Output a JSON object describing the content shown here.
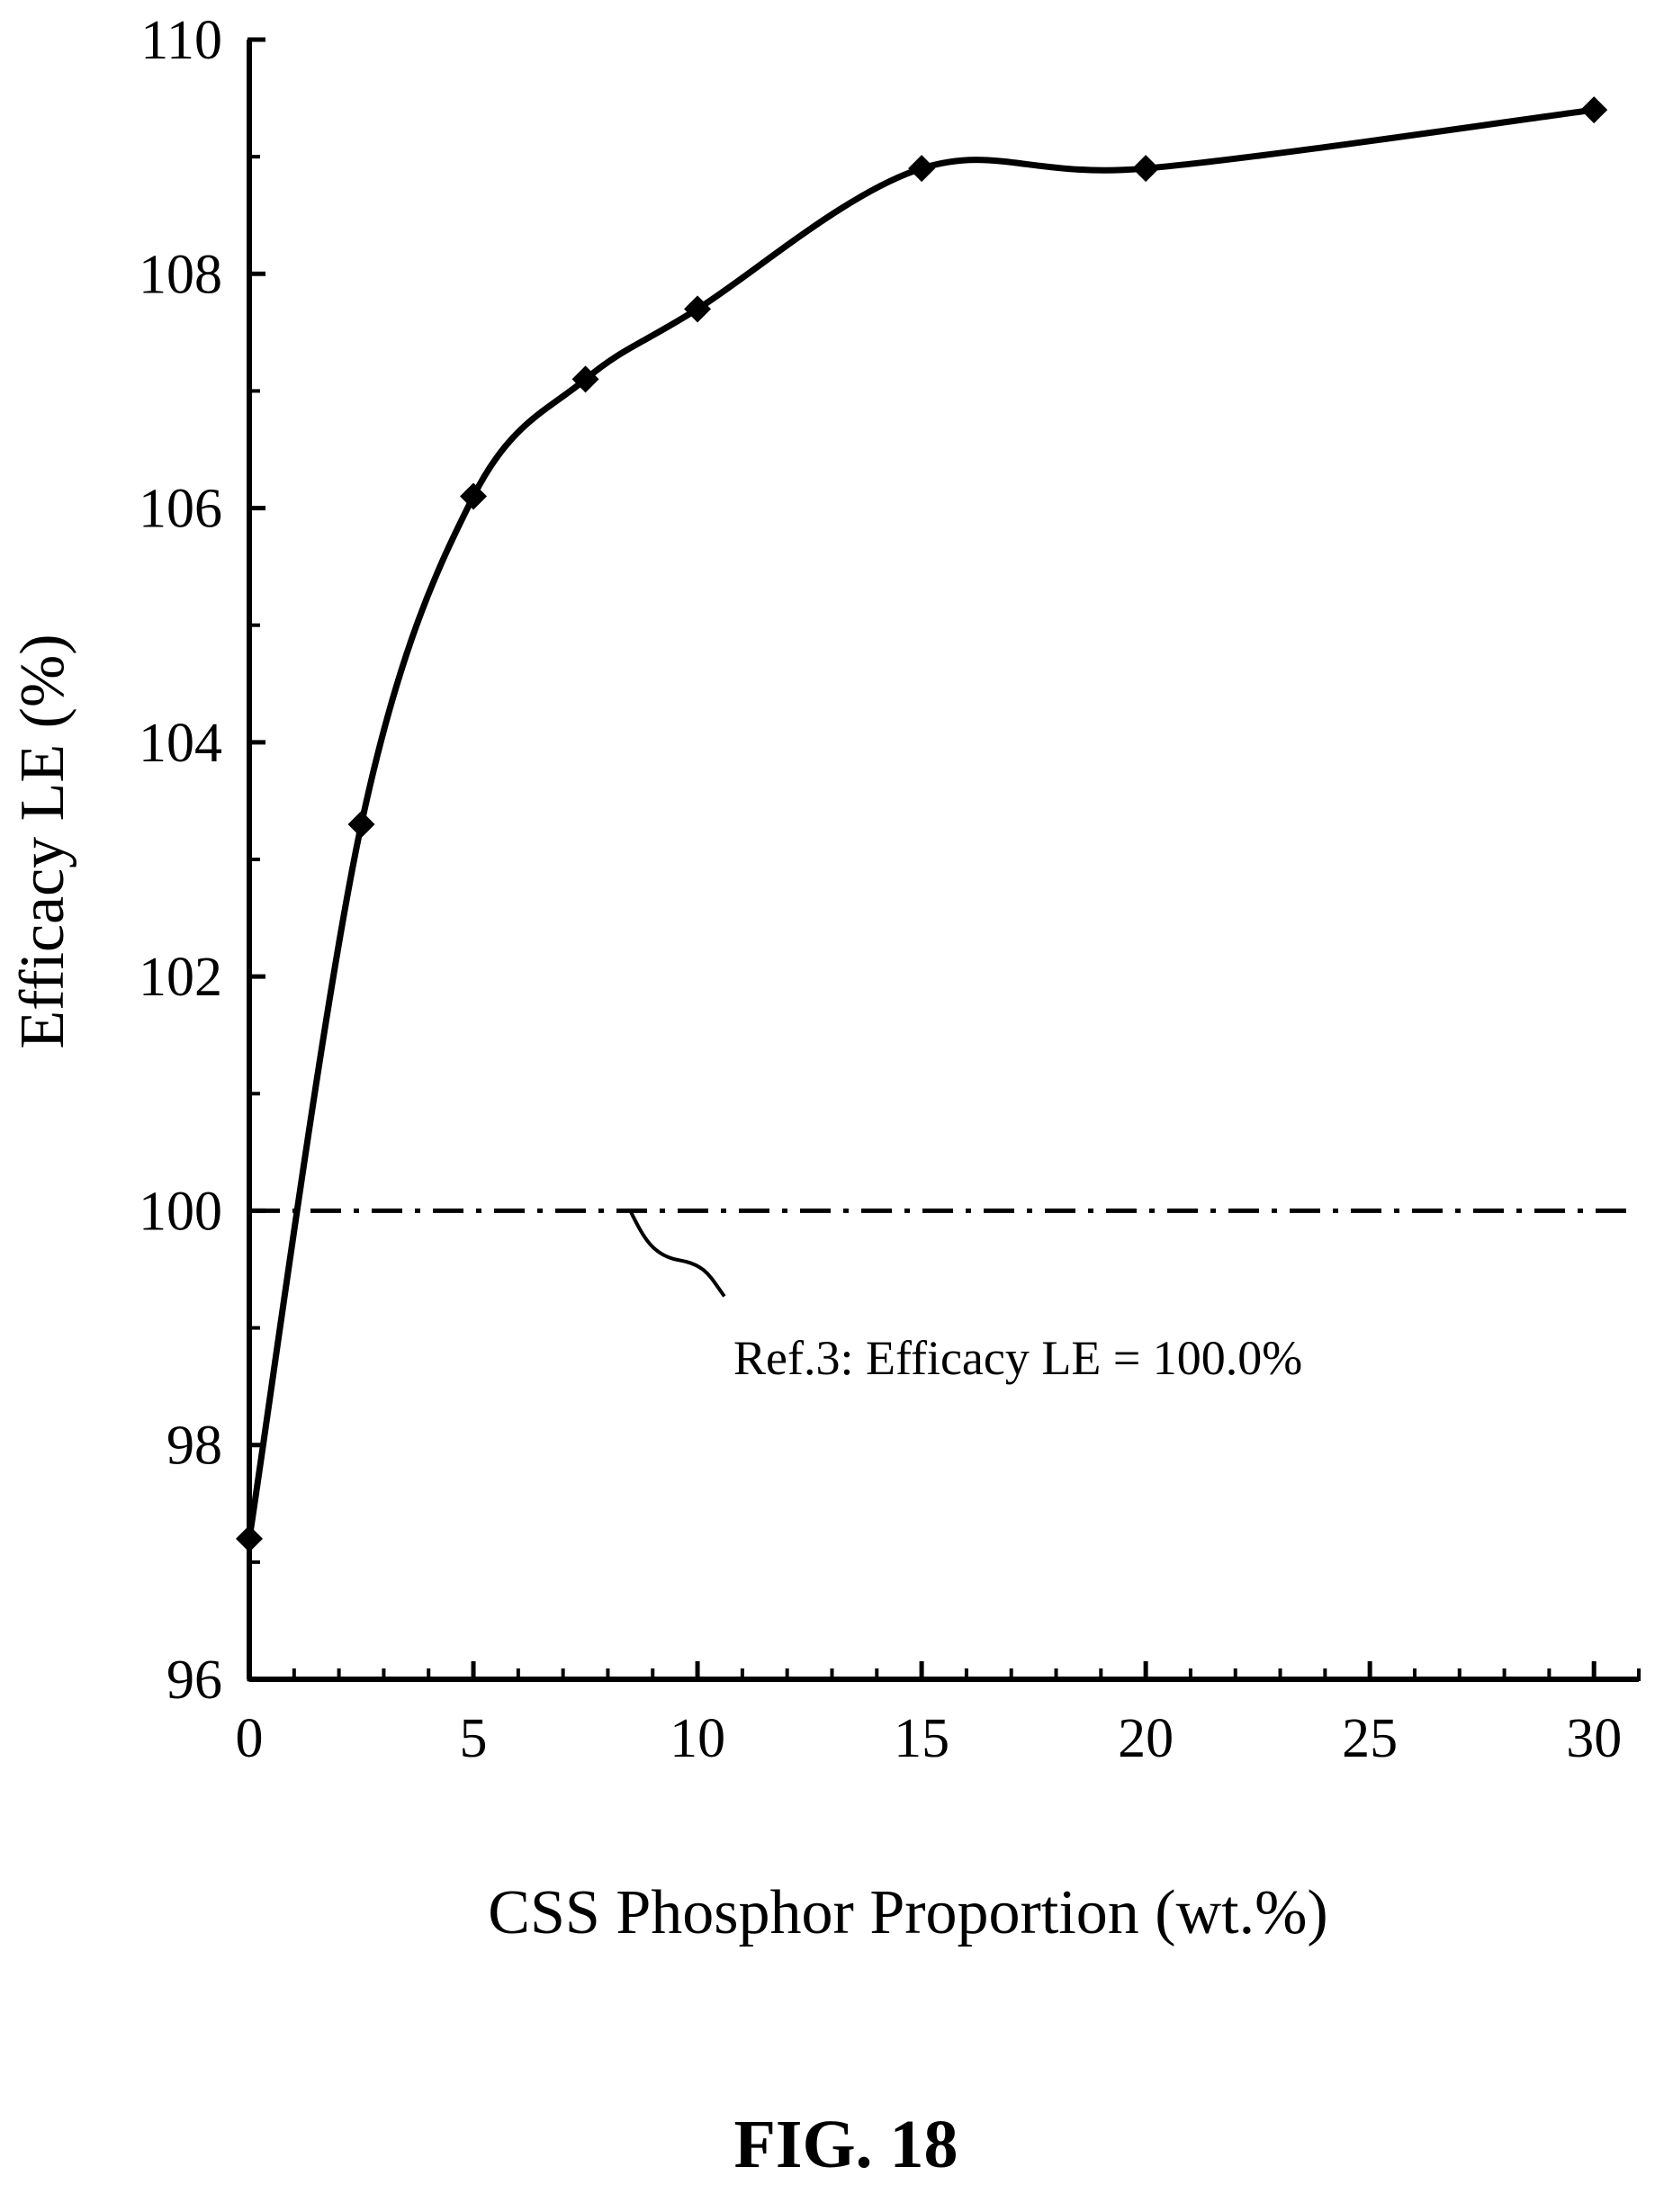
{
  "figure": {
    "caption": "FIG. 18"
  },
  "chart_data": {
    "type": "line",
    "title": "",
    "xlabel": "CSS Phosphor Proportion (wt.%)",
    "ylabel": "Efficacy LE  (%)",
    "xlim": [
      0,
      31
    ],
    "ylim": [
      96,
      110
    ],
    "x_ticks": [
      0,
      5,
      10,
      15,
      20,
      25,
      30
    ],
    "y_ticks": [
      96,
      98,
      100,
      102,
      104,
      106,
      108,
      110
    ],
    "grid": false,
    "series": [
      {
        "marker": "diamond",
        "smooth": true,
        "color": "#000000",
        "x": [
          0,
          2.5,
          5,
          7.5,
          10,
          15,
          20,
          30
        ],
        "y": [
          97.2,
          103.3,
          106.1,
          107.1,
          107.7,
          108.9,
          108.9,
          109.4
        ]
      }
    ],
    "reference_line": {
      "y": 100,
      "style": "dash-dot",
      "label": "Ref.3: Efficacy LE = 100.0%"
    }
  }
}
